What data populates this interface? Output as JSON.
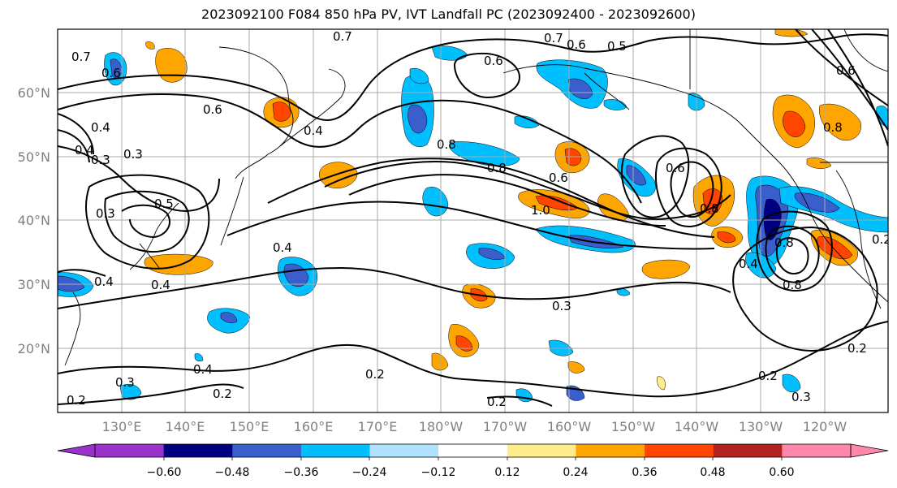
{
  "title": "2023092100 F084 850 hPa PV, IVT Landfall PC (2023092400 - 2023092600)",
  "map": {
    "lon_labels": [
      "130°E",
      "140°E",
      "150°E",
      "160°E",
      "170°E",
      "180°W",
      "170°W",
      "160°W",
      "150°W",
      "140°W",
      "130°W",
      "120°W"
    ],
    "lat_labels": [
      "60°N",
      "50°N",
      "40°N",
      "30°N",
      "20°N"
    ],
    "contour_labels": [
      "0.7",
      "0.6",
      "0.5",
      "0.6",
      "0.7",
      "0.6",
      "0.6",
      "0.4",
      "0.3",
      "0.4",
      "0.7",
      "0.8",
      "0.5",
      "0.3",
      "0.4",
      "0.8",
      "0.6",
      "1.0",
      "0.6",
      "0.8",
      "0.8",
      "0.6",
      "0.4",
      "0.4",
      "0.3",
      "0.4",
      "0.8",
      "0.8",
      "0.3",
      "0.2",
      "0.3",
      "0.2",
      "0.2",
      "0.2",
      "0.2",
      "0.3",
      "0.2",
      "0.4",
      "0.4",
      "0.2"
    ]
  },
  "colorbar": {
    "ticks": [
      "−0.60",
      "−0.48",
      "−0.36",
      "−0.24",
      "−0.12",
      "0.12",
      "0.24",
      "0.36",
      "0.48",
      "0.60"
    ],
    "colors": [
      "#9933cc",
      "#000080",
      "#3a5fcd",
      "#00bfff",
      "#b0e2ff",
      "#ffffff",
      "#ffec8b",
      "#ffa500",
      "#ff4500",
      "#b22222",
      "#ff88aa",
      "#ff88aa"
    ]
  }
}
